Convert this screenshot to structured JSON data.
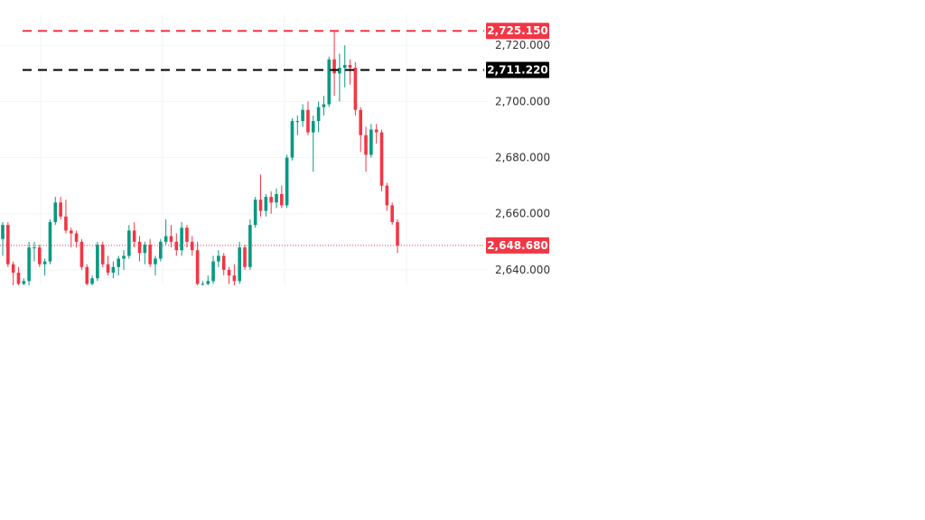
{
  "chart_data": {
    "type": "candlestick",
    "title": "",
    "xlabel": "",
    "ylabel": "",
    "ylim": [
      2634.5,
      2727.8
    ],
    "grid": true,
    "y_ticks": [
      {
        "value": 2640,
        "label": "2,640.000"
      },
      {
        "value": 2660,
        "label": "2,660.000"
      },
      {
        "value": 2680,
        "label": "2,680.000"
      },
      {
        "value": 2700,
        "label": "2,700.000"
      },
      {
        "value": 2720,
        "label": "2,720.000"
      }
    ],
    "levels": [
      {
        "value": 2725.15,
        "label": "2,725.150",
        "color": "#f23645",
        "style": "dashed"
      },
      {
        "value": 2711.22,
        "label": "2,711.220",
        "color": "#000000",
        "style": "dashed"
      }
    ],
    "last_price": {
      "value": 2648.68,
      "label": "2,648.680",
      "color": "#f23645",
      "style": "dotted"
    },
    "colors": {
      "up": "#089981",
      "down": "#f23645",
      "grid": "#f0f3fa",
      "axis_text": "#333333"
    },
    "candles": [
      [
        2651.0,
        2657.0,
        2645.0,
        2656.0
      ],
      [
        2656.0,
        2657.0,
        2641.0,
        2642.0
      ],
      [
        2642.0,
        2643.0,
        2634.5,
        2639.0
      ],
      [
        2639.0,
        2641.0,
        2634.5,
        2635.0
      ],
      [
        2635.0,
        2637.0,
        2634.5,
        2636.0
      ],
      [
        2636.0,
        2650.0,
        2634.5,
        2648.0
      ],
      [
        2648.0,
        2650.0,
        2643.0,
        2648.0
      ],
      [
        2648.0,
        2649.0,
        2641.0,
        2642.0
      ],
      [
        2642.0,
        2644.0,
        2638.0,
        2643.0
      ],
      [
        2643.0,
        2658.0,
        2642.0,
        2657.0
      ],
      [
        2657.0,
        2666.0,
        2656.0,
        2664.0
      ],
      [
        2664.0,
        2666.0,
        2658.0,
        2659.0
      ],
      [
        2659.0,
        2665.0,
        2653.0,
        2654.0
      ],
      [
        2654.0,
        2655.0,
        2648.0,
        2653.0
      ],
      [
        2653.0,
        2654.0,
        2648.0,
        2650.0
      ],
      [
        2650.0,
        2651.0,
        2640.0,
        2641.0
      ],
      [
        2641.0,
        2642.0,
        2634.5,
        2635.0
      ],
      [
        2635.0,
        2638.0,
        2634.5,
        2637.0
      ],
      [
        2637.0,
        2650.0,
        2636.0,
        2649.0
      ],
      [
        2649.0,
        2650.0,
        2641.0,
        2642.0
      ],
      [
        2642.0,
        2645.0,
        2638.0,
        2639.0
      ],
      [
        2639.0,
        2643.0,
        2637.0,
        2641.0
      ],
      [
        2641.0,
        2645.0,
        2638.0,
        2644.0
      ],
      [
        2644.0,
        2647.0,
        2640.0,
        2645.0
      ],
      [
        2645.0,
        2656.0,
        2644.0,
        2654.0
      ],
      [
        2654.0,
        2657.0,
        2648.0,
        2650.0
      ],
      [
        2650.0,
        2652.0,
        2643.0,
        2646.0
      ],
      [
        2646.0,
        2650.0,
        2642.0,
        2649.0
      ],
      [
        2649.0,
        2651.0,
        2641.0,
        2642.0
      ],
      [
        2642.0,
        2645.0,
        2638.0,
        2644.0
      ],
      [
        2644.0,
        2651.0,
        2643.0,
        2650.0
      ],
      [
        2650.0,
        2658.0,
        2649.0,
        2652.0
      ],
      [
        2652.0,
        2656.0,
        2648.0,
        2650.0
      ],
      [
        2650.0,
        2653.0,
        2645.0,
        2647.0
      ],
      [
        2647.0,
        2657.0,
        2645.0,
        2655.0
      ],
      [
        2655.0,
        2656.0,
        2648.0,
        2650.0
      ],
      [
        2650.0,
        2652.0,
        2645.0,
        2647.0
      ],
      [
        2647.0,
        2650.0,
        2634.5,
        2635.0
      ],
      [
        2635.0,
        2636.0,
        2634.5,
        2635.0
      ],
      [
        2635.0,
        2638.0,
        2634.5,
        2636.0
      ],
      [
        2636.0,
        2645.0,
        2635.0,
        2643.0
      ],
      [
        2643.0,
        2647.0,
        2641.0,
        2645.0
      ],
      [
        2645.0,
        2646.0,
        2638.0,
        2640.0
      ],
      [
        2640.0,
        2641.0,
        2635.0,
        2638.0
      ],
      [
        2638.0,
        2642.0,
        2634.5,
        2636.0
      ],
      [
        2636.0,
        2650.0,
        2635.0,
        2648.0
      ],
      [
        2648.0,
        2649.0,
        2640.0,
        2641.0
      ],
      [
        2641.0,
        2658.0,
        2640.0,
        2656.0
      ],
      [
        2656.0,
        2666.0,
        2655.0,
        2665.0
      ],
      [
        2665.0,
        2674.0,
        2659.0,
        2661.0
      ],
      [
        2661.0,
        2667.0,
        2659.0,
        2666.0
      ],
      [
        2666.0,
        2668.0,
        2660.0,
        2664.0
      ],
      [
        2664.0,
        2669.0,
        2662.0,
        2667.0
      ],
      [
        2667.0,
        2670.0,
        2662.0,
        2663.0
      ],
      [
        2663.0,
        2681.0,
        2662.0,
        2680.0
      ],
      [
        2680.0,
        2694.0,
        2679.0,
        2693.0
      ],
      [
        2693.0,
        2695.0,
        2688.0,
        2693.0
      ],
      [
        2693.0,
        2699.0,
        2691.0,
        2697.0
      ],
      [
        2697.0,
        2700.0,
        2688.0,
        2689.0
      ],
      [
        2689.0,
        2695.0,
        2675.0,
        2693.0
      ],
      [
        2693.0,
        2700.0,
        2689.0,
        2698.0
      ],
      [
        2698.0,
        2702.0,
        2695.0,
        2699.0
      ],
      [
        2699.0,
        2716.0,
        2698.0,
        2715.0
      ],
      [
        2715.0,
        2725.15,
        2702.0,
        2710.0
      ],
      [
        2710.0,
        2717.0,
        2700.0,
        2712.0
      ],
      [
        2712.0,
        2720.0,
        2705.0,
        2713.0
      ],
      [
        2713.0,
        2715.0,
        2706.0,
        2712.0
      ],
      [
        2712.0,
        2714.0,
        2695.0,
        2697.0
      ],
      [
        2697.0,
        2698.0,
        2682.0,
        2688.0
      ],
      [
        2688.0,
        2691.0,
        2675.0,
        2681.0
      ],
      [
        2681.0,
        2692.0,
        2680.0,
        2690.0
      ],
      [
        2690.0,
        2692.0,
        2685.0,
        2689.0
      ],
      [
        2689.0,
        2690.0,
        2668.0,
        2670.0
      ],
      [
        2670.0,
        2671.0,
        2661.0,
        2663.0
      ],
      [
        2663.0,
        2664.0,
        2656.0,
        2657.0
      ],
      [
        2657.0,
        2658.0,
        2646.0,
        2648.68
      ]
    ]
  }
}
